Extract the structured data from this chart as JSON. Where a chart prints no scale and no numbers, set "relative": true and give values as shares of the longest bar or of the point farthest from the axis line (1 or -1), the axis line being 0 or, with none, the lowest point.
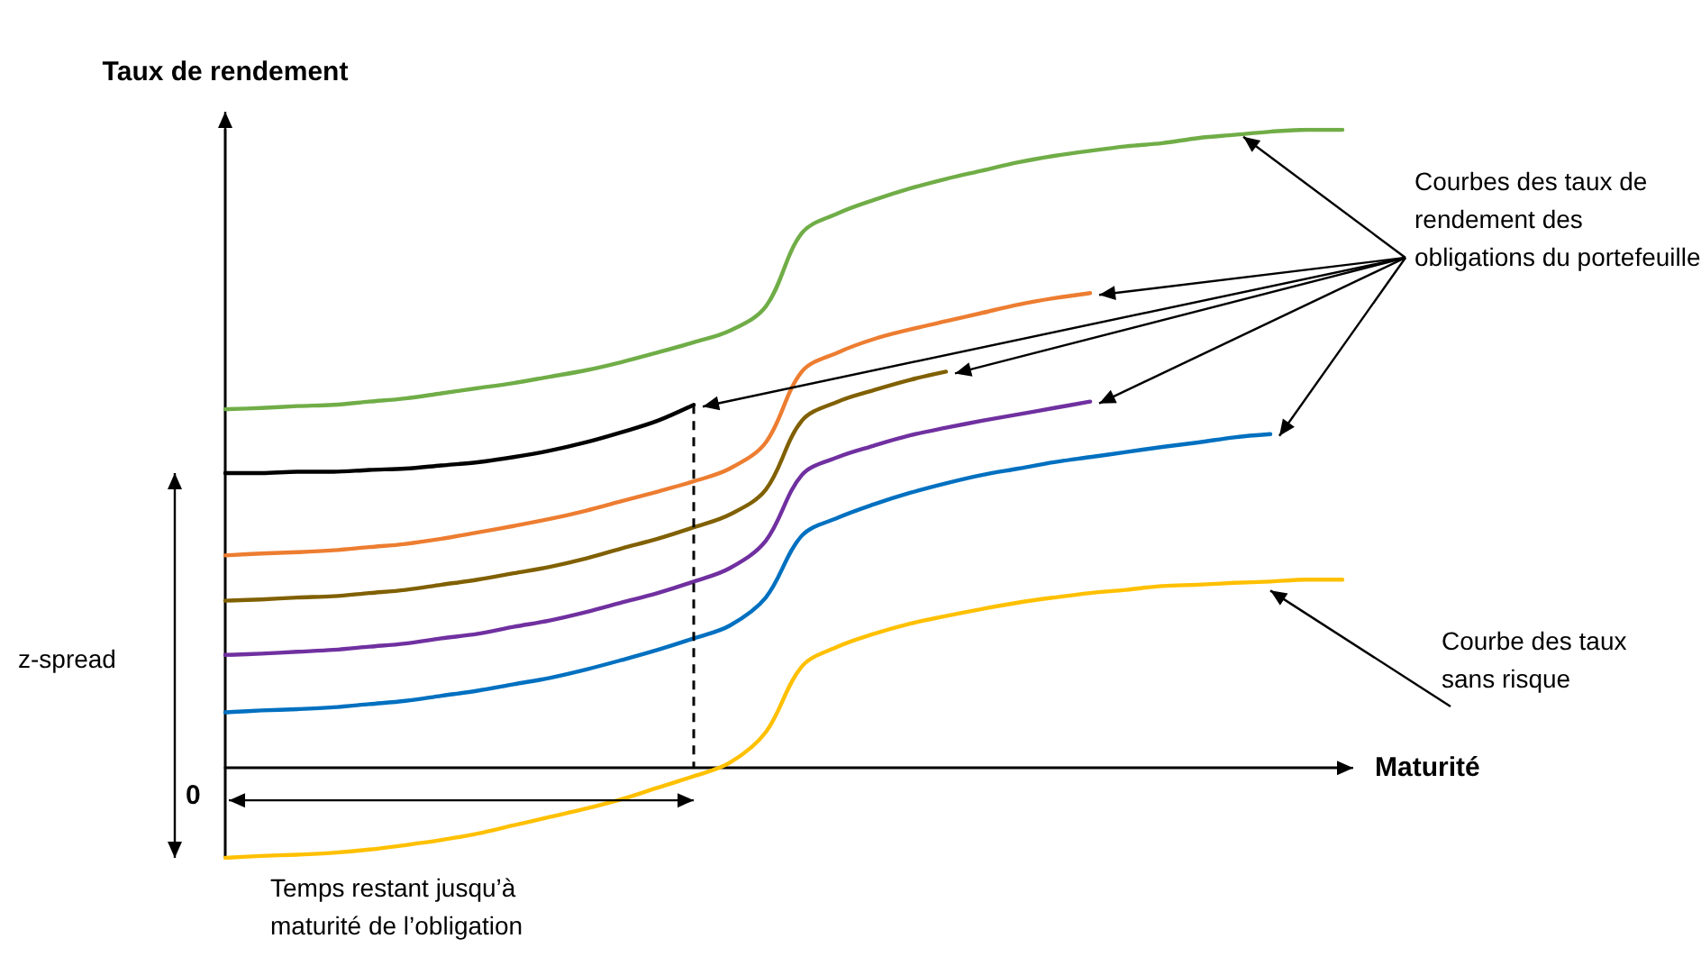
{
  "chart_data": {
    "type": "line",
    "relative": true,
    "ylabel": "Taux de rendement",
    "xlabel": "Maturité",
    "marker": "none",
    "grid": false,
    "categories": [
      null,
      null,
      null,
      null,
      null,
      null,
      null,
      null,
      null,
      null,
      null,
      null,
      null,
      null,
      null,
      null,
      null,
      null,
      null,
      null,
      null,
      null,
      null,
      null,
      null,
      null,
      null,
      null,
      null,
      null,
      null,
      null
    ],
    "series": [
      {
        "color": "#70ad47",
        "values": [
          0.562,
          0.564,
          0.567,
          0.569,
          0.574,
          0.579,
          0.587,
          0.595,
          0.603,
          0.613,
          0.623,
          0.636,
          0.651,
          0.667,
          0.685,
          0.723,
          0.838,
          0.869,
          0.89,
          0.908,
          0.923,
          0.936,
          0.949,
          0.959,
          0.967,
          0.974,
          0.979,
          0.987,
          0.992,
          0.997,
          1,
          1
        ]
      },
      {
        "color": "#000000",
        "values": [
          0.462,
          0.462,
          0.464,
          0.464,
          0.467,
          0.469,
          0.474,
          0.479,
          0.487,
          0.497,
          0.51,
          0.526,
          0.544,
          0.569,
          null,
          null,
          null,
          null,
          null,
          null,
          null,
          null,
          null,
          null,
          null,
          null,
          null,
          null,
          null,
          null,
          null,
          null
        ]
      },
      {
        "color": "#ed7d31",
        "values": [
          0.333,
          0.336,
          0.338,
          0.341,
          0.346,
          0.351,
          0.359,
          0.369,
          0.379,
          0.39,
          0.403,
          0.418,
          0.433,
          0.449,
          0.469,
          0.51,
          0.621,
          0.651,
          0.672,
          0.687,
          0.7,
          0.713,
          0.726,
          0.736,
          0.744,
          null,
          null,
          null,
          null,
          null,
          null,
          null
        ]
      },
      {
        "color": "#806000",
        "values": [
          0.262,
          0.264,
          0.267,
          0.269,
          0.274,
          0.279,
          0.287,
          0.295,
          0.305,
          0.315,
          0.328,
          0.344,
          0.359,
          0.377,
          0.397,
          0.436,
          0.544,
          0.574,
          0.592,
          0.608,
          0.621,
          null,
          null,
          null,
          null,
          null,
          null,
          null,
          null,
          null,
          null,
          null
        ]
      },
      {
        "color": "#7030a0",
        "values": [
          0.177,
          0.179,
          0.182,
          0.185,
          0.19,
          0.195,
          0.203,
          0.21,
          0.221,
          0.231,
          0.244,
          0.259,
          0.274,
          0.292,
          0.313,
          0.356,
          0.459,
          0.487,
          0.505,
          0.521,
          0.533,
          0.544,
          0.554,
          0.564,
          0.574,
          null,
          null,
          null,
          null,
          null,
          null,
          null
        ]
      },
      {
        "color": "#0070c0",
        "values": [
          0.087,
          0.09,
          0.092,
          0.095,
          0.1,
          0.105,
          0.113,
          0.121,
          0.131,
          0.141,
          0.154,
          0.169,
          0.185,
          0.203,
          0.223,
          0.267,
          0.364,
          0.392,
          0.413,
          0.431,
          0.446,
          0.459,
          0.469,
          0.479,
          0.487,
          0.495,
          0.503,
          0.51,
          0.518,
          0.523,
          null,
          null
        ]
      },
      {
        "color": "#ffc000",
        "values": [
          -0.141,
          -0.138,
          -0.136,
          -0.133,
          -0.128,
          -0.121,
          -0.113,
          -0.103,
          -0.09,
          -0.077,
          -0.064,
          -0.049,
          -0.031,
          -0.013,
          0.008,
          0.056,
          0.159,
          0.19,
          0.21,
          0.226,
          0.238,
          0.249,
          0.259,
          0.267,
          0.274,
          0.279,
          0.285,
          0.287,
          0.29,
          0.292,
          0.295,
          0.295
        ]
      }
    ],
    "annotations": [
      "Courbes des taux de rendement des obligations du portefeuille",
      "Courbe des taux sans risque",
      "z-spread",
      "Temps restant jusqu’à maturité de l’obligation",
      "0"
    ]
  }
}
